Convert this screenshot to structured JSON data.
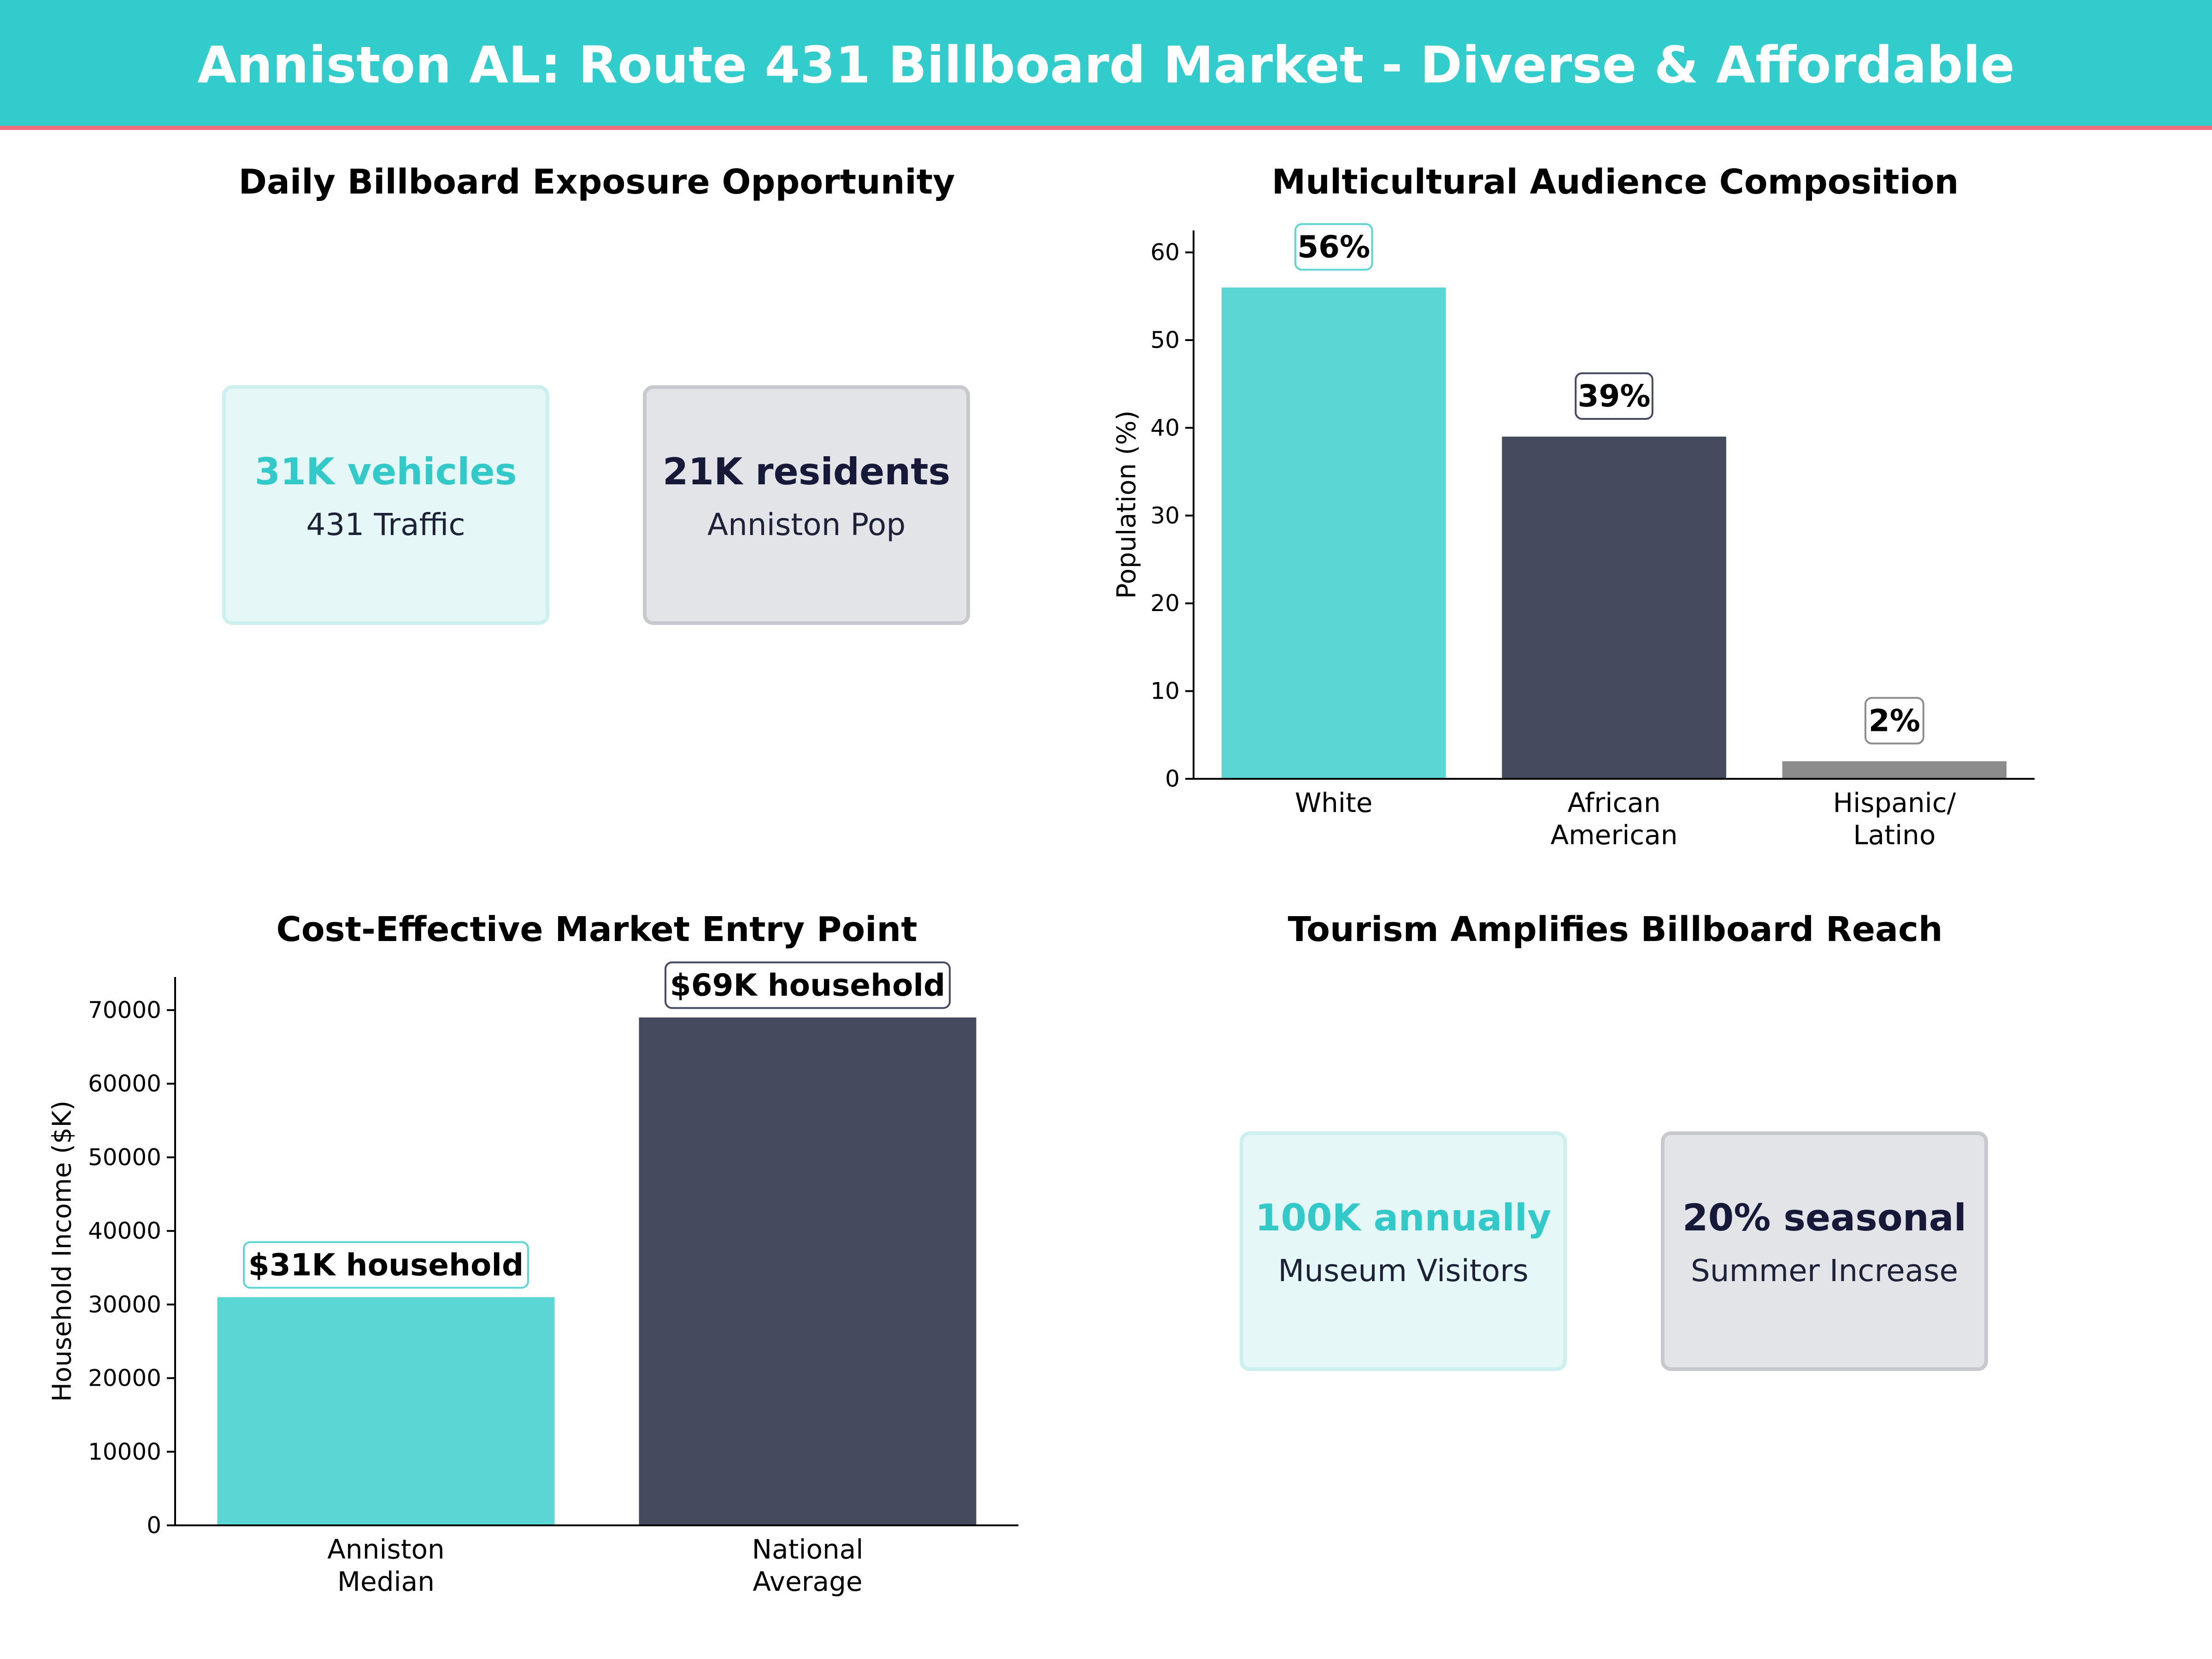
{
  "header": {
    "title": "Anniston AL: Route 431 Billboard Market - Diverse & Affordable"
  },
  "colors": {
    "teal": "#5cd6d4",
    "navy": "#454a5f",
    "gray": "#8c8c8c",
    "banner": "#33cccc",
    "accent_line": "#f26d7d"
  },
  "exposure": {
    "title": "Daily Billboard Exposure Opportunity",
    "cards": [
      {
        "value": "31K vehicles",
        "label": "431 Traffic"
      },
      {
        "value": "21K residents",
        "label": "Anniston Pop"
      }
    ]
  },
  "tourism": {
    "title": "Tourism Amplifies Billboard Reach",
    "cards": [
      {
        "value": "100K annually",
        "label": "Museum Visitors"
      },
      {
        "value": "20% seasonal",
        "label": "Summer Increase"
      }
    ]
  },
  "chart_data": [
    {
      "type": "bar",
      "title": "Multicultural Audience Composition",
      "categories": [
        [
          "White"
        ],
        [
          "African",
          "American"
        ],
        [
          "Hispanic/",
          "Latino"
        ]
      ],
      "values": [
        56,
        39,
        2
      ],
      "data_labels": [
        "56%",
        "39%",
        "2%"
      ],
      "bar_colors": [
        "#5cd6d4",
        "#454a5f",
        "#8c8c8c"
      ],
      "label_border_colors": [
        "#5cd6d4",
        "#454a5f",
        "#8c8c8c"
      ],
      "ylabel": "Population (%)",
      "ylim": [
        0,
        62.5
      ],
      "yticks": [
        0,
        10,
        20,
        30,
        40,
        50,
        60
      ],
      "grid": false
    },
    {
      "type": "bar",
      "title": "Cost-Effective Market Entry Point",
      "categories": [
        [
          "Anniston",
          "Median"
        ],
        [
          "National",
          "Average"
        ]
      ],
      "values": [
        31000,
        69000
      ],
      "data_labels": [
        "$31K household",
        "$69K household"
      ],
      "bar_colors": [
        "#5cd6d4",
        "#454a5f"
      ],
      "label_border_colors": [
        "#5cd6d4",
        "#454a5f"
      ],
      "ylabel": "Household Income ($K)",
      "ylim": [
        0,
        74500
      ],
      "yticks": [
        0,
        10000,
        20000,
        30000,
        40000,
        50000,
        60000,
        70000
      ],
      "grid": false
    }
  ]
}
